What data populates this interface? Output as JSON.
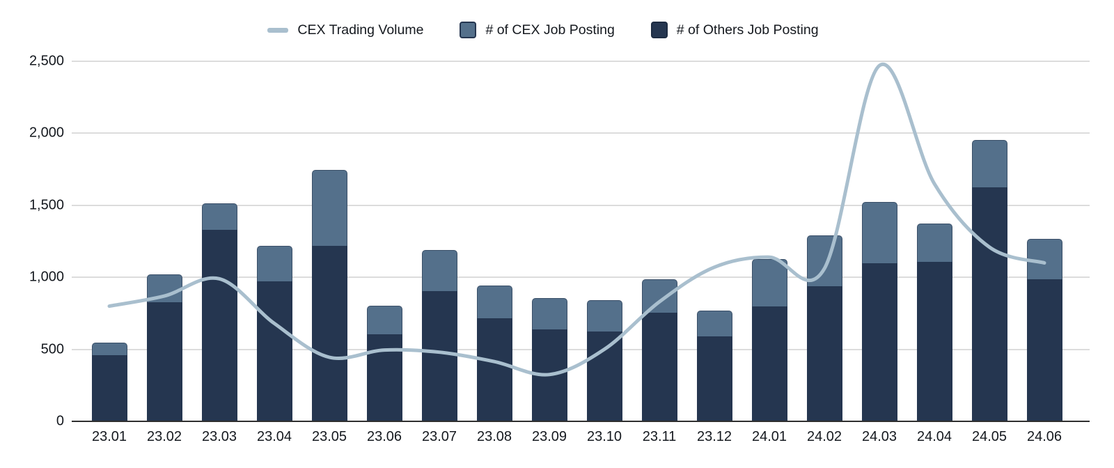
{
  "legend": {
    "items": [
      {
        "label": "CEX Trading Volume",
        "swatch": "line",
        "color": "#a9bfce",
        "border": "#a9bfce"
      },
      {
        "label": "# of CEX Job Posting",
        "swatch": "square",
        "color": "#54708b",
        "border": "#253650"
      },
      {
        "label": "# of Others Job Posting",
        "swatch": "square",
        "color": "#253650",
        "border": "#1d2c42"
      }
    ]
  },
  "chart_data": {
    "type": "combo",
    "stacked": true,
    "grid": "horizontal",
    "legend_position": "top",
    "categories": [
      "23.01",
      "23.02",
      "23.03",
      "23.04",
      "23.05",
      "23.06",
      "23.07",
      "23.08",
      "23.09",
      "23.10",
      "23.11",
      "23.12",
      "24.01",
      "24.02",
      "24.03",
      "24.04",
      "24.05",
      "24.06"
    ],
    "series": [
      {
        "name": "CEX Trading Volume",
        "type": "line",
        "color": "#a9bfce",
        "values": [
          800,
          870,
          990,
          680,
          445,
          495,
          480,
          415,
          325,
          500,
          830,
          1070,
          1140,
          1060,
          2470,
          1650,
          1210,
          1100
        ]
      },
      {
        "name": "# of CEX Job Posting",
        "type": "bar",
        "stack": "jobs",
        "color": "#54708b",
        "values": [
          85,
          195,
          185,
          250,
          525,
          200,
          285,
          230,
          215,
          215,
          230,
          180,
          325,
          350,
          425,
          270,
          330,
          280
        ]
      },
      {
        "name": "# of Others Job Posting",
        "type": "bar",
        "stack": "jobs",
        "color": "#253650",
        "values": [
          460,
          825,
          1330,
          970,
          1220,
          605,
          905,
          715,
          640,
          625,
          755,
          590,
          800,
          940,
          1100,
          1105,
          1625,
          985
        ]
      }
    ],
    "stack_totals": [
      545,
      1020,
      1515,
      1220,
      1745,
      805,
      1190,
      945,
      855,
      840,
      985,
      770,
      1125,
      1290,
      1525,
      1375,
      1955,
      1265
    ],
    "ylim": [
      0,
      2500
    ],
    "yticks": [
      {
        "value": 0,
        "label": "0"
      },
      {
        "value": 500,
        "label": "500"
      },
      {
        "value": 1000,
        "label": "1,000"
      },
      {
        "value": 1500,
        "label": "1,500"
      },
      {
        "value": 2000,
        "label": "2,000"
      },
      {
        "value": 2500,
        "label": "2,500"
      }
    ]
  }
}
